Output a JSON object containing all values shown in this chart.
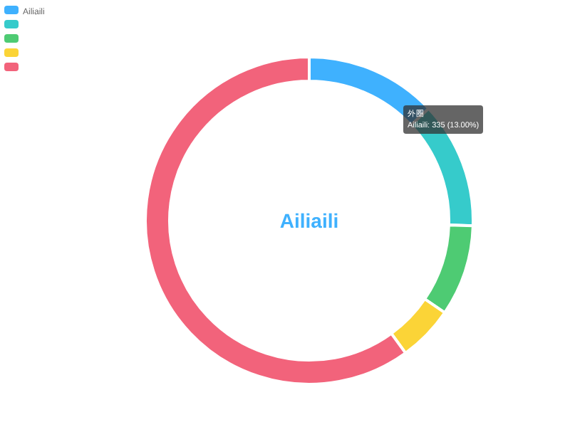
{
  "chart_data": {
    "type": "donut",
    "title": "Ailiaili",
    "categories": [
      "Ailiaili",
      null,
      null,
      null,
      null
    ],
    "values": [
      13,
      12.5,
      9,
      5.5,
      60
    ],
    "colors": [
      "#3fb1fe",
      "#36cbcb",
      "#4ecb73",
      "#fbd437",
      "#f2637b"
    ],
    "legend": "top left",
    "annotations": [
      "外圈",
      "Ailiaili: 335 (13.00%)"
    ]
  }
}
